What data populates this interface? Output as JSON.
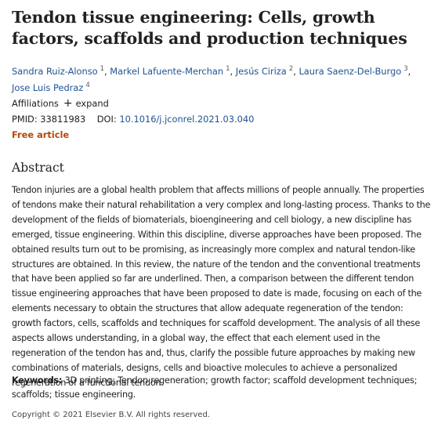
{
  "article": {
    "title": "Tendon tissue engineering: Cells, growth factors, scaffolds and production techniques",
    "authors": [
      {
        "name": "Sandra Ruiz-Alonso",
        "aff": "1"
      },
      {
        "name": "Markel Lafuente-Merchan",
        "aff": "1"
      },
      {
        "name": "Jesús Ciriza",
        "aff": "2"
      },
      {
        "name": "Laura Saenz-Del-Burgo",
        "aff": "3"
      },
      {
        "name": "Jose Luis Pedraz",
        "aff": "4"
      }
    ],
    "affiliations_label": "Affiliations",
    "expand_label": "expand",
    "pmid_label": "PMID:",
    "pmid": "33811983",
    "doi_label": "DOI:",
    "doi": "10.1016/j.jconrel.2021.03.040",
    "free_label": "Free article"
  },
  "abstract": {
    "heading": "Abstract",
    "text": "Tendon injuries are a global health problem that affects millions of people annually. The properties of tendons make their natural rehabilitation a very complex and long-lasting process. Thanks to the development of the fields of biomaterials, bioengineering and cell biology, a new discipline has emerged, tissue engineering. Within this discipline, diverse approaches have been proposed. The obtained results turn out to be promising, as increasingly more complex and natural tendon-like structures are obtained. In this review, the nature of the tendon and the conventional treatments that have been applied so far are underlined. Then, a comparison between the different tendon tissue engineering approaches that have been proposed to date is made, focusing on each of the elements necessary to obtain the structures that allow adequate regeneration of the tendon: growth factors, cells, scaffolds and techniques for scaffold development. The analysis of all these aspects allows understanding, in a global way, the effect that each element used in the regeneration of the tendon has and, thus, clarify the possible future approaches by making new combinations of materials, designs, cells and bioactive molecules to achieve a personalized regeneration of a functional tendon."
  },
  "keywords": {
    "label": "Keywords:",
    "text": "3D printing; Tendon regeneration; growth factor; scaffold development techniques; scaffolds; tissue engineering."
  },
  "copyright": "Copyright © 2021 Elsevier B.V. All rights reserved."
}
